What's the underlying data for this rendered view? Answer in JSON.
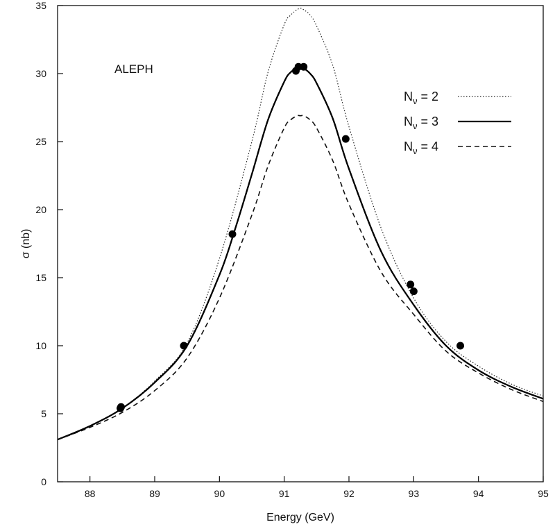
{
  "chart_data": {
    "type": "line",
    "xlabel": "Energy (GeV)",
    "ylabel": "σ (nb)",
    "annotation": "ALEPH",
    "xlim": [
      87.5,
      95
    ],
    "ylim": [
      0,
      35
    ],
    "xticks": [
      88,
      89,
      90,
      91,
      92,
      93,
      94,
      95
    ],
    "yticks": [
      0,
      5,
      10,
      15,
      20,
      25,
      30,
      35
    ],
    "grid": false,
    "legend_position": "top-right",
    "series": [
      {
        "name": "N",
        "sub": "ν",
        "value_text": "= 2",
        "style": "dotted",
        "x": [
          87.5,
          88,
          88.5,
          89,
          89.5,
          90,
          90.5,
          90.75,
          91,
          91.1,
          91.2,
          91.25,
          91.3,
          91.4,
          91.5,
          91.75,
          92,
          92.5,
          93,
          93.5,
          94,
          94.5,
          95
        ],
        "y": [
          3.1,
          4.1,
          5.4,
          7.4,
          10.2,
          16.4,
          25.0,
          30.1,
          33.6,
          34.3,
          34.7,
          34.8,
          34.7,
          34.3,
          33.5,
          30.6,
          26.1,
          18.6,
          13.5,
          10.3,
          8.5,
          7.2,
          6.3
        ]
      },
      {
        "name": "N",
        "sub": "ν",
        "value_text": "= 3",
        "style": "solid",
        "x": [
          87.5,
          88,
          88.5,
          89,
          89.5,
          90,
          90.25,
          90.5,
          90.75,
          91,
          91.1,
          91.2,
          91.25,
          91.3,
          91.4,
          91.5,
          91.75,
          92,
          92.5,
          93,
          93.5,
          94,
          94.5,
          95
        ],
        "y": [
          3.1,
          4.1,
          5.4,
          7.3,
          10.0,
          15.2,
          18.7,
          22.6,
          26.6,
          29.4,
          30.1,
          30.4,
          30.5,
          30.4,
          30.0,
          29.3,
          26.7,
          23.0,
          16.9,
          13.0,
          10.0,
          8.2,
          7.0,
          6.1
        ]
      },
      {
        "name": "N",
        "sub": "ν",
        "value_text": "= 4",
        "style": "dashed",
        "x": [
          87.5,
          88,
          88.5,
          89,
          89.5,
          90,
          90.5,
          90.75,
          91,
          91.1,
          91.2,
          91.25,
          91.3,
          91.4,
          91.5,
          91.75,
          92,
          92.5,
          93,
          93.5,
          94,
          94.5,
          95
        ],
        "y": [
          3.1,
          4.0,
          5.1,
          6.7,
          9.1,
          13.5,
          19.6,
          23.2,
          26.0,
          26.6,
          26.9,
          26.9,
          26.9,
          26.6,
          26.0,
          23.6,
          20.4,
          15.4,
          12.3,
          9.6,
          8.0,
          6.8,
          5.9
        ]
      }
    ],
    "data_points": {
      "x": [
        88.47,
        88.48,
        89.45,
        90.2,
        91.18,
        91.22,
        91.3,
        91.95,
        92.95,
        93.0,
        93.72
      ],
      "y": [
        5.4,
        5.5,
        10.0,
        18.2,
        30.2,
        30.5,
        30.5,
        25.2,
        14.5,
        14.0,
        10.0
      ]
    }
  }
}
